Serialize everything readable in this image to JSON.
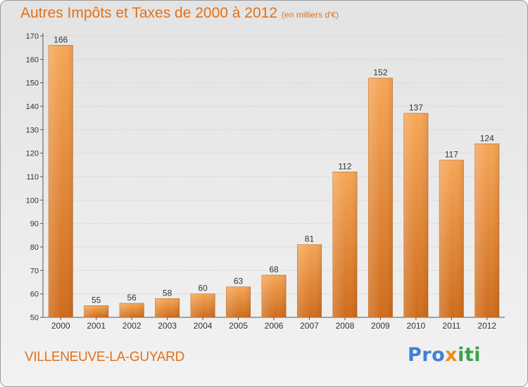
{
  "title": "Autres Impôts et Taxes de 2000 à 2012",
  "subtitle": "(en milliers d'€)",
  "commune": "VILLENEUVE-LA-GUYARD",
  "logo": {
    "part1": "Pro",
    "part2": "x",
    "part3": "iti"
  },
  "colors": {
    "accent": "#e0711a",
    "bar_top": "#f6a657",
    "bar_bottom": "#cf6c1c",
    "grid": "#d0d0d0"
  },
  "chart_data": {
    "type": "bar",
    "title": "Autres Impôts et Taxes de 2000 à 2012",
    "subtitle": "(en milliers d'€)",
    "categories": [
      "2000",
      "2001",
      "2002",
      "2003",
      "2004",
      "2005",
      "2006",
      "2007",
      "2008",
      "2009",
      "2010",
      "2011",
      "2012"
    ],
    "values": [
      166,
      55,
      56,
      58,
      60,
      63,
      68,
      81,
      112,
      152,
      137,
      117,
      124
    ],
    "ylim": [
      50,
      170
    ],
    "yticks": [
      50,
      60,
      70,
      80,
      90,
      100,
      110,
      120,
      130,
      140,
      150,
      160,
      170
    ],
    "grid": true,
    "data_labels": true
  }
}
